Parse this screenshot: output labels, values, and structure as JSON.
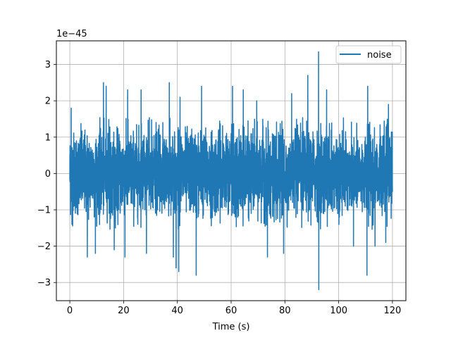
{
  "chart_data": {
    "type": "line",
    "title": "",
    "xlabel": "Time (s)",
    "ylabel": "",
    "offset_text": "1e−45",
    "xlim": [
      -5,
      125
    ],
    "ylim": [
      -3.5,
      3.65
    ],
    "x_ticks": [
      0,
      20,
      40,
      60,
      80,
      100,
      120
    ],
    "x_tick_labels": [
      "0",
      "20",
      "40",
      "60",
      "80",
      "100",
      "120"
    ],
    "y_ticks": [
      -3,
      -2,
      -1,
      0,
      1,
      2,
      3
    ],
    "y_tick_labels": [
      "−3",
      "−2",
      "−1",
      "0",
      "1",
      "2",
      "3"
    ],
    "grid": true,
    "legend": {
      "placement": "top-right"
    },
    "series": [
      {
        "name": "noise",
        "color": "#1f77b4",
        "x_range": [
          0,
          120
        ],
        "typical_amplitude": 1.0,
        "peaks": [
          {
            "x": 0.5,
            "y": 1.8
          },
          {
            "x": 0.8,
            "y": -1.4
          },
          {
            "x": 6.5,
            "y": -2.3
          },
          {
            "x": 9.5,
            "y": -2.2
          },
          {
            "x": 12.5,
            "y": 2.5
          },
          {
            "x": 13.5,
            "y": 2.4
          },
          {
            "x": 16.5,
            "y": -2.1
          },
          {
            "x": 20.5,
            "y": -2.3
          },
          {
            "x": 21.5,
            "y": 2.3
          },
          {
            "x": 26.5,
            "y": 2.3
          },
          {
            "x": 28.5,
            "y": -2.2
          },
          {
            "x": 37,
            "y": 2.5
          },
          {
            "x": 38.5,
            "y": -2.3
          },
          {
            "x": 39.5,
            "y": -2.6
          },
          {
            "x": 40.5,
            "y": -2.7
          },
          {
            "x": 41,
            "y": 2.1
          },
          {
            "x": 47,
            "y": -2.8
          },
          {
            "x": 49,
            "y": 2.4
          },
          {
            "x": 60.5,
            "y": 2.4
          },
          {
            "x": 64.5,
            "y": 2.3
          },
          {
            "x": 69.5,
            "y": 2.0
          },
          {
            "x": 73.5,
            "y": -2.3
          },
          {
            "x": 79.5,
            "y": -2.2
          },
          {
            "x": 82.5,
            "y": 2.2
          },
          {
            "x": 88.5,
            "y": 2.7
          },
          {
            "x": 92.5,
            "y": 3.35
          },
          {
            "x": 92.6,
            "y": -3.2
          },
          {
            "x": 95.5,
            "y": 2.3
          },
          {
            "x": 105.5,
            "y": -2.0
          },
          {
            "x": 110.5,
            "y": -2.8
          },
          {
            "x": 110.8,
            "y": 2.4
          },
          {
            "x": 113.5,
            "y": -2.0
          },
          {
            "x": 117.5,
            "y": -1.9
          },
          {
            "x": 118.5,
            "y": 1.9
          }
        ]
      }
    ]
  }
}
